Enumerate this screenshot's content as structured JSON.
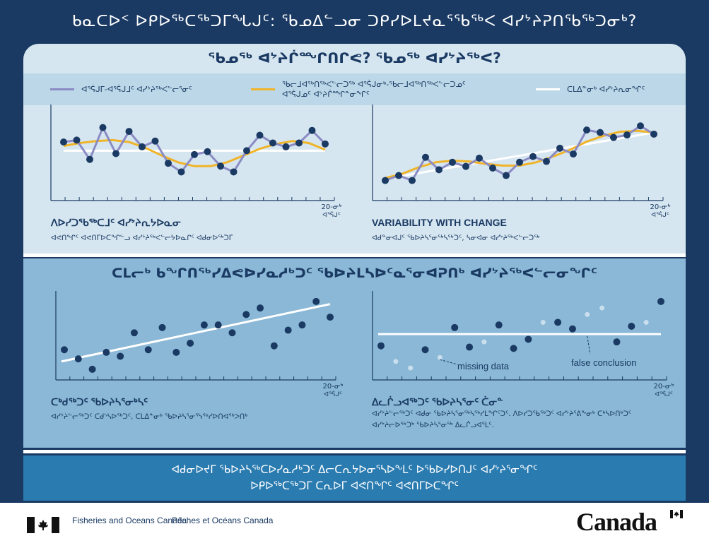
{
  "title": "ᑲᓇᑕᐅᑉ ᐅᑭᐅᖅᑕᖅᑐᒥᖓᒍᑦ: ᖃᓄᐃᓪᓗᓂ ᑐᑭᓯᐅᒪᔪᓇᕐᖃᖅᐸ ᐊᓯᔾᔨᕈᑎᖃᖅᑐᓂᒃ?",
  "top_section": {
    "title": "ᖃᓄᖅ ᐊᔾᔨᒌᙱᑎᒋᕙ? ᖃᓄᖅ ᐊᓯᔾᔨᖅᐸ?",
    "legend": [
      {
        "label": "ᐊᕐᕌᒍᒥ-ᐊᕐᕌᒍᒧᑦ ᐊᓯᔾᔨᖅᐸᓪᓕᕐᓂᑦ",
        "color": "#8b8bc4"
      },
      {
        "label": "ᖃᓕᒧᐊᖅᑎᖅᐸᓪᓕᑐᖅ ᐊᕐᕌᒍᓂᒃ-ᖃᓕᒧᐊᖅᑎᖅᐸᓪᓕᑐᓄᑦ ᐊᕐᕌᒍᓄᑦ ᐊᔾᔨᒌᙱᓐᓂᖏᑦ",
        "color": "#f0b429"
      },
      {
        "label": "ᑕᒪᐃᓐᓂᒃ ᐊᓯᔾᔨᕆᓂᖏᑦ",
        "color": "#ffffff"
      }
    ],
    "panel_left": {
      "title": "ᐱᐅᓯᑐᖃᖅᑕᒧᑦ ᐊᓯᔾᔨᕆᔭᐅᓇᓂ",
      "text": "ᐊᕙᑎᖏᑦ ᐊᕙᑎᒥᐅᑕᖏᓪᓗ ᐊᓯᔾᔨᖅᐸᓪᓕᔭᐅᓇᒋᑦ ᐊᑯᓂᐅᖅᑐᒥ",
      "x_tick": "20-ᓂᒃ ᐊᕐᕌᒍᑦ"
    },
    "panel_right": {
      "title": "VARIABILITY WITH CHANGE",
      "text": "ᐊᑯᓐᓂᐊᒍᑦ ᖃᐅᔨᓴᕐᓂᖅᓴᖅᑐᑦ, ᓴᓂᐊᓂ ᐊᓯᔾᔨᖅᐸᓪᓕᑐᖅ",
      "x_tick": "20-ᓂᒃ ᐊᕐᕌᒍᑦ"
    }
  },
  "mid_section": {
    "title": "ᑕᒪᓕᒃ ᑲᖏᑎᖅᓯᐃᕙᐅᓯᓇᓱᒃᑐᑦ ᖃᐅᔨᒪᓴᐅᑦᓇᕐᓂᐊᕈᑎᒃ ᐊᓯᔾᔨᖅᐸᓪᓕᓂᖏᑦ",
    "panel_left": {
      "title": "ᑕᒃᑯᖅᑐᑦ ᖃᐅᔨᓴᕐᓂᒃᓴᑦ",
      "text": "ᐊᓯᔾᔨᓪᓕᖅᑐᑦ ᑕᑯᔅᓴᐅᖅᑐᑦ, ᑕᒪᐃᓐᓂᒃ ᖃᐅᔨᓴᕐᓂᕐᓭᖅᓯᐅᑎᐊᖅᐳᑎᒃ",
      "x_tick": "20-ᓂᒃ ᐊᕐᕌᒍᑦ"
    },
    "panel_right": {
      "title": "ᐃᓚᒌᓗᐊᖅᑐᑦ ᖃᐅᔨᓴᕐᓂᑦ ᑖᓂᓐ",
      "text": "ᐊᓯᔾᔨᓪᓕᖅᑐᑦ ᐊᑯᓂ ᖃᐅᔨᓴᕐᓂᖅᓴᖅᓯᒪᖏᑦᑐᑦ. ᐱᐅᓯᑐᖃᖅᑐᑦ ᐊᓯᔾᔨᕐᕕᖕᓂᒃ ᑕᒃᓴᐅᑎᒃᑐᑦ ᐊᓯᔾᔨᓕᐅᖅᑐᒃ ᖃᐅᔨᓴᕐᓂᖅ ᐃᓚᒌᓗᐊᕐᒪᑦ.",
      "x_tick": "20-ᓂᒃ ᐊᕐᕌᒍᑦ",
      "annotation_missing": "missing data",
      "annotation_false": "false conclusion"
    }
  },
  "bottom_section": {
    "line1": "ᐊᑯᓂᐅᔪᒥ ᖃᐅᔨᓴᖅᑕᐅᓯᓇᓱᒃᑐᑦ ᐃᓕᑕᕆᔭᐅᓂᕐᓴᐅᖕᒪᑦ ᐅᖃᐅᓯᐅᑎᒍᑦ ᐊᓯᔾᔨᕐᓂᖏᑦ",
    "line2": "ᐅᑭᐅᖅᑕᖅᑐᒥ ᑕᕆᐅᒥ ᐊᕙᑎᖏᑦ ᐊᕙᑎᒥᐅᑕᖏᑦ"
  },
  "footer": {
    "dept_en": "Fisheries and Oceans Canada",
    "dept_fr": "Pêches et Océans Canada",
    "wordmark": "Canada"
  },
  "chart_data": [
    {
      "type": "line",
      "panel": "stable",
      "values": [
        7.7,
        7.9,
        5.9,
        9.2,
        6.5,
        8.8,
        7.2,
        7.8,
        5.5,
        4.6,
        6.4,
        6.7,
        5.2,
        4.6,
        6.8,
        8.4,
        7.6,
        7.2,
        7.6,
        8.9,
        7.5
      ],
      "trend": [
        6.8,
        6.8
      ],
      "smooth": [
        7.3,
        7.6,
        7.8,
        7.9,
        7.7,
        7.1,
        6.3,
        5.6,
        5.2,
        5.2,
        5.6,
        6.3,
        7.0,
        7.5,
        7.8,
        7.6,
        6.9
      ],
      "ylim": [
        2,
        11
      ]
    },
    {
      "type": "line",
      "panel": "changing",
      "values": [
        2.0,
        2.6,
        2.0,
        4.8,
        3.3,
        4.2,
        3.7,
        4.7,
        3.5,
        2.6,
        4.2,
        4.9,
        4.3,
        5.9,
        5.2,
        8.1,
        7.8,
        7.2,
        7.5,
        8.6,
        7.6
      ],
      "trend": [
        2.2,
        7.8
      ],
      "smooth": [
        2.3,
        2.8,
        3.6,
        4.2,
        4.4,
        4.3,
        4.0,
        3.8,
        3.8,
        4.2,
        4.9,
        5.7,
        6.7,
        7.4,
        7.9,
        8.0,
        7.8
      ],
      "ylim": [
        0,
        10.5
      ]
    },
    {
      "type": "scatter",
      "panel": "long-term",
      "x": [
        1,
        2,
        3,
        4,
        5,
        6,
        7,
        8,
        9,
        10,
        11,
        12,
        13,
        14,
        15,
        16,
        17,
        18,
        19,
        20
      ],
      "y": [
        2.1,
        1.4,
        0.6,
        1.9,
        1.6,
        3.4,
        2.1,
        3.8,
        1.9,
        2.6,
        4.0,
        4.0,
        3.4,
        4.8,
        5.3,
        2.4,
        3.6,
        4.0,
        5.8,
        4.6
      ],
      "trend": [
        1.2,
        5.6
      ],
      "ylim": [
        0,
        6.5
      ]
    },
    {
      "type": "scatter",
      "panel": "incomplete",
      "x": [
        1,
        2,
        3,
        4,
        5,
        6,
        7,
        8,
        9,
        10,
        11,
        12,
        13,
        14,
        15,
        16,
        17,
        18,
        19,
        20
      ],
      "y": [
        2.4,
        1.2,
        0.7,
        2.1,
        1.5,
        3.8,
        2.3,
        2.7,
        4.0,
        2.2,
        2.9,
        4.2,
        4.2,
        3.7,
        4.8,
        5.3,
        2.7,
        3.9,
        4.2,
        5.8
      ],
      "missing": [
        false,
        true,
        true,
        false,
        true,
        false,
        false,
        true,
        false,
        false,
        false,
        true,
        false,
        false,
        true,
        true,
        false,
        false,
        true,
        false
      ],
      "trend": [
        3.3,
        3.3
      ],
      "ylim": [
        0,
        6.5
      ]
    }
  ]
}
